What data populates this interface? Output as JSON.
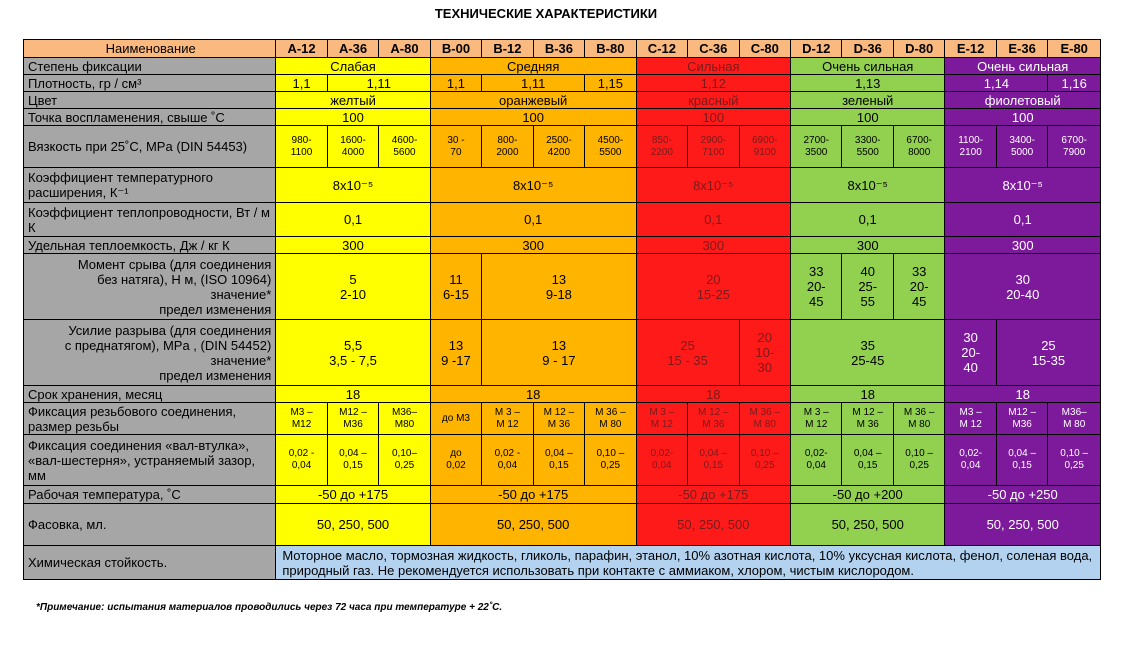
{
  "title": "ТЕХНИЧЕСКИЕ ХАРАКТЕРИСТИКИ",
  "colors": {
    "A": "#ffff00",
    "B": "#ffb400",
    "C": "#ff1a1a",
    "D": "#92d050",
    "E": "#7d1a9c",
    "header": "#fab97f",
    "label": "#a6a6a6",
    "chem": "#b3d2f0"
  },
  "header": {
    "name": "Наименование",
    "cols": [
      "A-12",
      "A-36",
      "A-80",
      "B-00",
      "B-12",
      "B-36",
      "B-80",
      "C-12",
      "C-36",
      "C-80",
      "D-12",
      "D-36",
      "D-80",
      "E-12",
      "E-36",
      "E-80"
    ]
  },
  "rows": {
    "fixation": {
      "label": "Степень фиксации",
      "A": "Слабая",
      "B": "Средняя",
      "C": "Сильная",
      "D": "Очень сильная",
      "E": "Очень сильная"
    },
    "density": {
      "label": "Плотность, гр / см³",
      "A12": "1,1",
      "A36_80": "1,11",
      "B00": "1,1",
      "B12_36": "1,11",
      "B80": "1,15",
      "C": "1,12",
      "D": "1,13",
      "E12_36": "1,14",
      "E80": "1,16"
    },
    "color": {
      "label": "Цвет",
      "A": "желтый",
      "B": "оранжевый",
      "C": "красный",
      "D": "зеленый",
      "E": "фиолетовый"
    },
    "flash": {
      "label": "Точка воспламенения, свыше ˚С",
      "A": "100",
      "B": "100",
      "C": "100",
      "D": "100",
      "E": "100"
    },
    "viscosity": {
      "label": "Вязкость при 25˚С, MPa (DIN 54453)",
      "values": [
        "980-\n1100",
        "1600-\n4000",
        "4600-\n5600",
        "30 -\n70",
        "800-\n2000",
        "2500-\n4200",
        "4500-\n5500",
        "850-\n2200",
        "2900-\n7100",
        "6900-\n9100",
        "2700-\n3500",
        "3300-\n5500",
        "6700-\n8000",
        "1100-\n2100",
        "3400-\n5000",
        "6700-\n7900"
      ]
    },
    "thermal_expansion": {
      "label": "Коэффициент температурного расширения, К⁻¹",
      "A": "8х10⁻⁵",
      "B": "8х10⁻⁵",
      "C": "8х10⁻⁵",
      "D": "8х10⁻⁵",
      "E": "8х10⁻⁵"
    },
    "conductivity": {
      "label": "Коэффициент теплопроводности, Вт / м К",
      "A": "0,1",
      "B": "0,1",
      "C": "0,1",
      "D": "0,1",
      "E": "0,1"
    },
    "heat_capacity": {
      "label": "Удельная теплоемкость, Дж / кг К",
      "A": "300",
      "B": "300",
      "C": "300",
      "D": "300",
      "E": "300"
    },
    "torque": {
      "label": "Момент срыва (для соединения\nбез натяга), Н м, (ISO 10964)\nзначение*\nпредел изменения",
      "A": "5\n2-10",
      "B00": "11\n6-15",
      "B": "13\n9-18",
      "C": "20\n15-25",
      "D12": "33\n20-\n45",
      "D36": "40\n25-\n55",
      "D80": "33\n20-\n45",
      "E": "30\n20-40"
    },
    "breaking": {
      "label": "Усилие разрыва (для соединения\nс преднатягом), MPa , (DIN 54452)\nзначение*\nпредел изменения",
      "A": "5,5\n3,5 - 7,5",
      "B00": "13\n9 -17",
      "B": "13\n9 - 17",
      "C": "25\n15 - 35",
      "C80": "20\n10-\n30",
      "D": "35\n25-45",
      "E12": "30\n20-\n40",
      "E": "25\n15-35"
    },
    "storage": {
      "label": "Срок хранения, месяц",
      "A": "18",
      "B": "18",
      "C": "18",
      "D": "18",
      "E": "18"
    },
    "thread": {
      "label": "Фиксация резьбового соединения, размер резьбы",
      "values": [
        "М3 –\nМ12",
        "М12 –\nМ36",
        "М36–\nМ80",
        "до М3",
        "М 3 –\nМ 12",
        "М 12 –\nМ 36",
        "М 36 –\nМ 80",
        "М 3 –\nМ 12",
        "М 12 –\nМ 36",
        "М 36 –\nМ 80",
        "М 3 –\nМ 12",
        "М 12 –\nМ 36",
        "М 36 –\nМ 80",
        "М3 –\nМ 12",
        "М12 –\nМ36",
        "М36–\nМ 80"
      ]
    },
    "gap": {
      "label": "Фиксация соединения «вал-втулка», «вал-шестерня», устраняемый зазор, мм",
      "values": [
        "0,02 -\n0,04",
        "0,04 –\n0,15",
        "0,10–\n0,25",
        "до\n0,02",
        "0,02 -\n0,04",
        "0,04 –\n0,15",
        "0,10 –\n0,25",
        "0,02-\n0,04",
        "0,04 –\n0,15",
        "0,10 –\n0,25",
        "0,02-\n0,04",
        "0,04 –\n0,15",
        "0,10 –\n0,25",
        "0,02-\n0,04",
        "0,04 –\n0,15",
        "0,10 –\n0,25"
      ]
    },
    "work_temp": {
      "label": "Рабочая температура, ˚С",
      "A": "-50 до +175",
      "B": "-50 до +175",
      "C": "-50 до +175",
      "D": "-50 до +200",
      "E": "-50 до +250"
    },
    "packing": {
      "label": "Фасовка, мл.",
      "A": "50, 250, 500",
      "B": "50, 250, 500",
      "C": "50, 250, 500",
      "D": "50, 250, 500",
      "E": "50, 250, 500"
    },
    "chemical": {
      "label": "Химическая стойкость.",
      "text": "Моторное масло, тормозная жидкость, гликоль, парафин, этанол, 10% азотная кислота, 10% уксусная кислота, фенол, соленая вода, природный газ. Не рекомендуется использовать при контакте с аммиаком, хлором, чистым кислородом."
    }
  },
  "footnote": "*Примечание: испытания материалов проводились через 72 часа при температуре + 22˚С."
}
